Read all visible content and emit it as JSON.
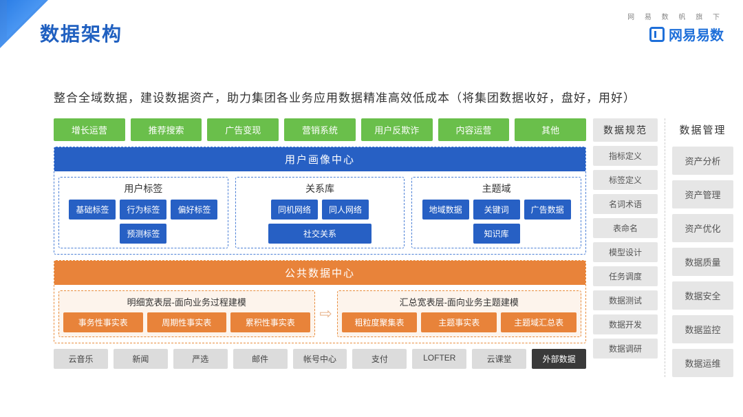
{
  "title": "数据架构",
  "brand_sub": "网 易 数 帆 旗 下",
  "brand_main": "网易易数",
  "subtitle": "整合全域数据，建设数据资产，助力集团各业务应用数据精准高效低成本（将集团数据收好，盘好，用好）",
  "colors": {
    "green": "#6abf4b",
    "blue_header": "#2760c4",
    "blue_border": "#4a7fd6",
    "orange_header": "#e8833a",
    "orange_border": "#e88b3a",
    "orange_bg": "#fdf4ec",
    "gray": "#dcdcdc",
    "gray_dark": "#3a3a3a",
    "spec_gray": "#e6e6e6",
    "title_color": "#2060c0",
    "brand_color": "#1e6fd9"
  },
  "green_row": [
    "增长运营",
    "推荐搜索",
    "广告变现",
    "营销系统",
    "用户反欺诈",
    "内容运营",
    "其他"
  ],
  "profile_center": {
    "header": "用户画像中心",
    "groups": [
      {
        "title": "用户标签",
        "items": [
          "基础标签",
          "行为标签",
          "偏好标签",
          "预测标签"
        ]
      },
      {
        "title": "关系库",
        "items": [
          "同机网络",
          "同人网络",
          "社交关系"
        ],
        "wide_last": true
      },
      {
        "title": "主题域",
        "items": [
          "地域数据",
          "关键词",
          "广告数据",
          "知识库"
        ]
      }
    ]
  },
  "public_center": {
    "header": "公共数据中心",
    "left": {
      "title": "明细宽表层-面向业务过程建模",
      "items": [
        "事务性事实表",
        "周期性事实表",
        "累积性事实表"
      ]
    },
    "right": {
      "title": "汇总宽表层-面向业务主题建模",
      "items": [
        "粗粒度聚集表",
        "主题事实表",
        "主题域汇总表"
      ]
    }
  },
  "arrow": "⇨",
  "sources": [
    {
      "label": "云音乐",
      "dark": false
    },
    {
      "label": "新闻",
      "dark": false
    },
    {
      "label": "严选",
      "dark": false
    },
    {
      "label": "邮件",
      "dark": false
    },
    {
      "label": "帐号中心",
      "dark": false
    },
    {
      "label": "支付",
      "dark": false
    },
    {
      "label": "LOFTER",
      "dark": false
    },
    {
      "label": "云课堂",
      "dark": false
    },
    {
      "label": "外部数据",
      "dark": true
    }
  ],
  "spec": {
    "header": "数据规范",
    "items": [
      "指标定义",
      "标签定义",
      "名词术语",
      "表命名",
      "模型设计",
      "任务调度",
      "数据测试",
      "数据开发",
      "数据调研"
    ]
  },
  "mgmt": {
    "header": "数据管理",
    "items": [
      "资产分析",
      "资产管理",
      "资产优化",
      "数据质量",
      "数据安全",
      "数据监控",
      "数据运维"
    ]
  }
}
